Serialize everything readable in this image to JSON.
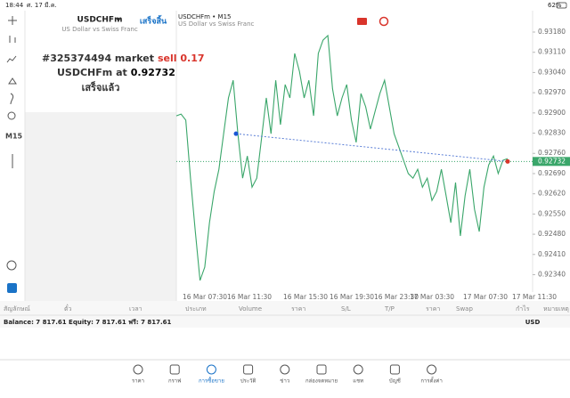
{
  "status_bar": {
    "time": "18:44",
    "date": "ศ. 17 มี.ค.",
    "battery": "62%"
  },
  "toolbar": {
    "timeframe": "M15"
  },
  "order_panel": {
    "symbol": "USDCHFm",
    "description": "US Dollar vs Swiss Franc",
    "done_button": "เสร็จสิ้น",
    "order_prefix": "#325374494 market",
    "order_side": "sell 0.17",
    "at_text": "USDCHFm at",
    "status": "เสร็จแล้ว"
  },
  "chart": {
    "type": "line",
    "title": "USDCHFm • M15",
    "subtitle": "US Dollar vs Swiss Franc",
    "color": "#3aa66a",
    "values": [
      0.9289,
      0.92896,
      0.92875,
      0.92674,
      0.92489,
      0.9232,
      0.92366,
      0.9252,
      0.92628,
      0.92705,
      0.92828,
      0.92952,
      0.93013,
      0.92828,
      0.92674,
      0.92751,
      0.92643,
      0.92674,
      0.92813,
      0.92952,
      0.92828,
      0.93013,
      0.92859,
      0.92998,
      0.92952,
      0.93106,
      0.93044,
      0.92952,
      0.93013,
      0.9289,
      0.93106,
      0.93152,
      0.93168,
      0.92983,
      0.9289,
      0.92952,
      0.92998,
      0.92875,
      0.92798,
      0.92967,
      0.92921,
      0.92844,
      0.92906,
      0.92967,
      0.93013,
      0.92921,
      0.92828,
      0.92782,
      0.92736,
      0.9269,
      0.92674,
      0.92705,
      0.92643,
      0.92674,
      0.92597,
      0.92628,
      0.92705,
      0.92613,
      0.9252,
      0.92659,
      0.92474,
      0.92613,
      0.92705,
      0.92566,
      0.92489,
      0.92643,
      0.9272,
      0.92751,
      0.9269,
      0.92736,
      0.92742
    ],
    "ylim": [
      0.92249,
      0.93254
    ],
    "yticks": [
      {
        "value": 0.9318,
        "label": "0.93180"
      },
      {
        "value": 0.9311,
        "label": "0.93110"
      },
      {
        "value": 0.9304,
        "label": "0.93040"
      },
      {
        "value": 0.9297,
        "label": "0.92970"
      },
      {
        "value": 0.929,
        "label": "0.92900"
      },
      {
        "value": 0.9283,
        "label": "0.92830"
      },
      {
        "value": 0.9276,
        "label": "0.92760"
      },
      {
        "value": 0.9269,
        "label": "0.92690"
      },
      {
        "value": 0.9262,
        "label": "0.92620"
      },
      {
        "value": 0.9255,
        "label": "0.92550"
      },
      {
        "value": 0.9248,
        "label": "0.92480"
      },
      {
        "value": 0.9241,
        "label": "0.92410"
      },
      {
        "value": 0.9234,
        "label": "0.92340"
      }
    ],
    "current_price": 0.92732,
    "entry_price": 0.92828,
    "x_labels": [
      "16 Mar 07:30",
      "16 Mar 11:30",
      "16 Mar 15:30",
      "16 Mar 19:30",
      "16 Mar 23:30",
      "17 Mar 03:30",
      "17 Mar 07:30",
      "17 Mar 11:30"
    ]
  },
  "table": {
    "columns": [
      "สัญลักษณ์",
      "ตั๋ว",
      "เวลา",
      "ประเภท",
      "Volume",
      "ราคา",
      "S/L",
      "T/P",
      "ราคา",
      "Swap",
      "กำไร",
      "หมายเหตุ"
    ],
    "balance_line": "Balance: 7 817.61 Equity: 7 817.61 ฟรี: 7 817.61",
    "currency": "USD"
  },
  "tabs": [
    "ราคา",
    "กราฟ",
    "การซื้อขาย",
    "ประวัติ",
    "ข่าว",
    "กล่องจดหมาย",
    "แชท",
    "บัญชี",
    "การตั้งค่า"
  ]
}
